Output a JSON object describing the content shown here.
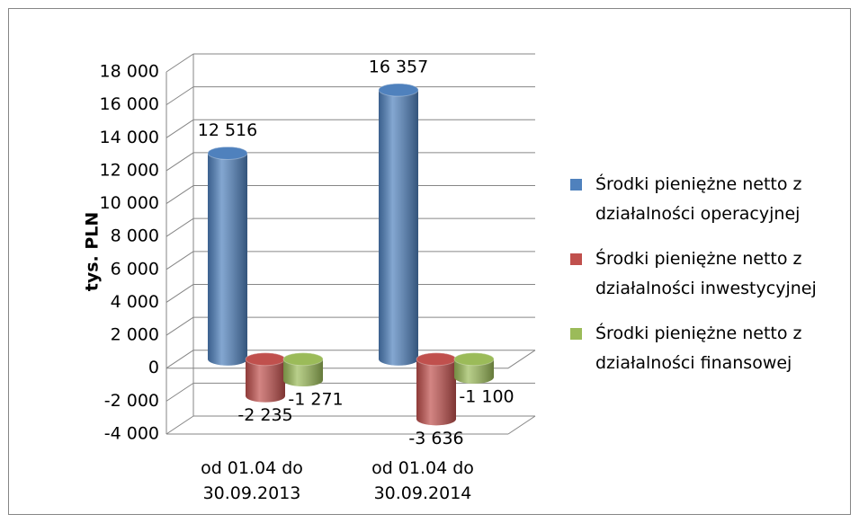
{
  "chart_data": {
    "type": "bar3d-cylinder",
    "y_label": "tys. PLN",
    "categories": [
      "od 01.04 do 30.09.2013",
      "od 01.04 do 30.09.2014"
    ],
    "series": [
      {
        "name": "Środki pieniężne netto z działalności operacyjnej",
        "color": "#4f81bd",
        "values": [
          12516,
          16357
        ],
        "value_labels": [
          "12 516",
          "16 357"
        ]
      },
      {
        "name": "Środki pieniężne netto z działalności inwestycyjnej",
        "color": "#c0504d",
        "values": [
          -2235,
          -3636
        ],
        "value_labels": [
          "-2 235",
          "-3 636"
        ]
      },
      {
        "name": "Środki pieniężne netto z działalności finansowej",
        "color": "#9bbb59",
        "values": [
          -1271,
          -1100
        ],
        "value_labels": [
          "-1 271",
          "-1 100"
        ]
      }
    ],
    "ylim": [
      -4000,
      18000
    ],
    "yticks": [
      {
        "value": -4000,
        "label": "-4 000"
      },
      {
        "value": -2000,
        "label": "-2 000"
      },
      0,
      {
        "value": 2000,
        "label": "2 000"
      },
      {
        "value": 4000,
        "label": "4 000"
      },
      {
        "value": 6000,
        "label": "6 000"
      },
      {
        "value": 8000,
        "label": "8 000"
      },
      {
        "value": 10000,
        "label": "10 000"
      },
      {
        "value": 12000,
        "label": "12 000"
      },
      {
        "value": 14000,
        "label": "14 000"
      },
      {
        "value": 16000,
        "label": "16 000"
      },
      {
        "value": 18000,
        "label": "18 000"
      }
    ],
    "grid": true,
    "legend": "right"
  }
}
